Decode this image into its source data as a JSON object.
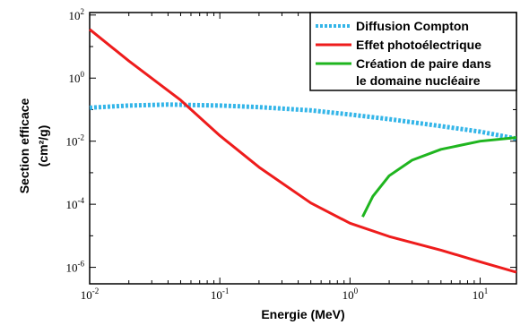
{
  "chart_data": {
    "type": "line",
    "xlabel": "Energie (MeV)",
    "ylabel_line1": "Section efficace",
    "ylabel_line2": "(cm²/g)",
    "x_scale": "log",
    "y_scale": "log",
    "xlim": [
      0.01,
      19
    ],
    "ylim": [
      3e-07,
      120
    ],
    "x_ticks": [
      {
        "value": 0.01,
        "base": "10",
        "exp": "-2"
      },
      {
        "value": 0.1,
        "base": "10",
        "exp": "-1"
      },
      {
        "value": 1,
        "base": "10",
        "exp": "0"
      },
      {
        "value": 10,
        "base": "10",
        "exp": "1"
      }
    ],
    "y_ticks": [
      {
        "value": 100,
        "base": "10",
        "exp": "2"
      },
      {
        "value": 1,
        "base": "10",
        "exp": "0"
      },
      {
        "value": 0.01,
        "base": "10",
        "exp": "-2"
      },
      {
        "value": 0.0001,
        "base": "10",
        "exp": "-4"
      },
      {
        "value": 1e-06,
        "base": "10",
        "exp": "-6"
      }
    ],
    "grid": false,
    "legend_position": "top-right",
    "series": [
      {
        "name": "Diffusion Compton",
        "color": "#33b5e8",
        "style": "dotted",
        "x": [
          0.01,
          0.02,
          0.04,
          0.06,
          0.1,
          0.2,
          0.5,
          1,
          2,
          5,
          10,
          19
        ],
        "y": [
          0.115,
          0.135,
          0.145,
          0.14,
          0.135,
          0.12,
          0.095,
          0.07,
          0.05,
          0.03,
          0.02,
          0.012
        ]
      },
      {
        "name": "Effet photoélectrique",
        "color": "#ee1c1c",
        "style": "solid",
        "x": [
          0.01,
          0.02,
          0.05,
          0.1,
          0.2,
          0.5,
          1,
          2,
          5,
          10,
          19
        ],
        "y": [
          35,
          3.5,
          0.2,
          0.015,
          0.0015,
          0.00011,
          2.5e-05,
          9.5e-06,
          3.5e-06,
          1.5e-06,
          7e-07
        ]
      },
      {
        "name": "Création de paire dans le domaine nucléaire",
        "legend_line1": "Création de paire dans",
        "legend_line2": "le domaine nucléaire",
        "color": "#1fb51f",
        "style": "solid",
        "x": [
          1.25,
          1.5,
          2,
          3,
          5,
          10,
          19
        ],
        "y": [
          4e-05,
          0.00018,
          0.0008,
          0.0025,
          0.0055,
          0.01,
          0.013
        ]
      }
    ]
  }
}
